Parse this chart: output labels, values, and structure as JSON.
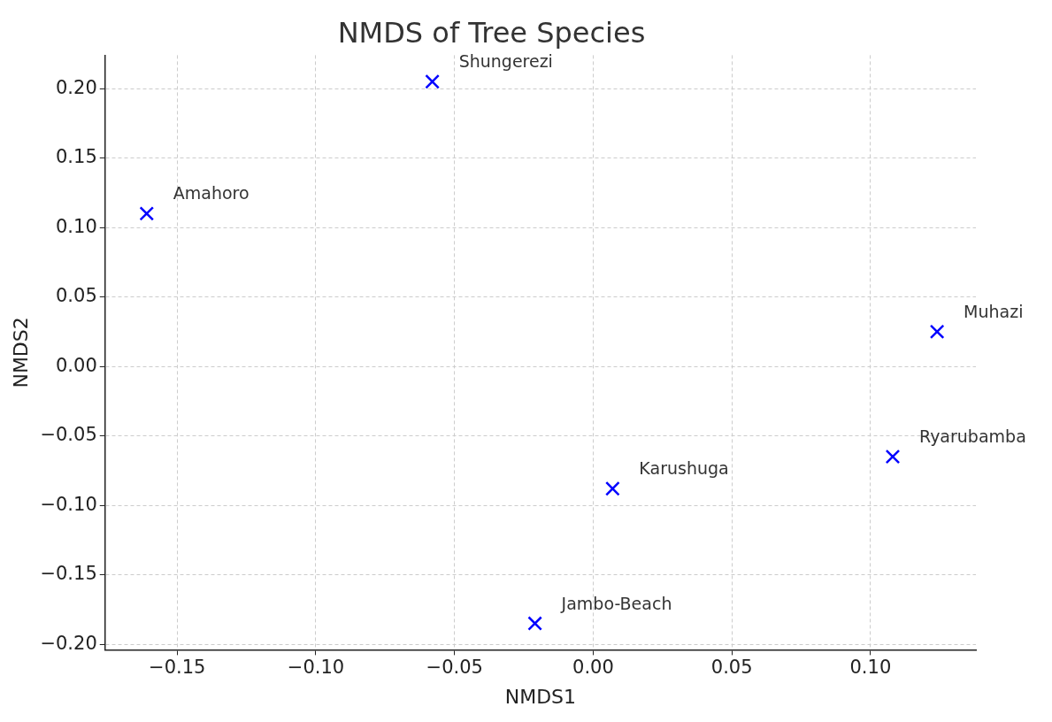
{
  "chart_data": {
    "type": "scatter",
    "title": "NMDS of Tree Species",
    "xlabel": "NMDS1",
    "ylabel": "NMDS2",
    "x": [
      -0.161,
      -0.058,
      0.124,
      0.108,
      0.007,
      -0.021
    ],
    "series": [
      {
        "color": "#0000ff",
        "values": [
          0.11,
          0.205,
          0.025,
          -0.065,
          -0.088,
          -0.185
        ]
      }
    ],
    "annotations": [
      {
        "text": "Amahoro",
        "x": -0.161,
        "y": 0.11
      },
      {
        "text": "Shungerezi",
        "x": -0.058,
        "y": 0.205
      },
      {
        "text": "Muhazi",
        "x": 0.124,
        "y": 0.025
      },
      {
        "text": "Ryarubamba",
        "x": 0.108,
        "y": -0.065
      },
      {
        "text": "Karushuga",
        "x": 0.007,
        "y": -0.088
      },
      {
        "text": "Jambo-Beach",
        "x": -0.021,
        "y": -0.185
      }
    ],
    "xlim": [
      -0.176,
      0.138
    ],
    "ylim": [
      -0.204,
      0.224
    ],
    "xticks": [
      {
        "value": -0.15,
        "label": "−0.15"
      },
      {
        "value": -0.1,
        "label": "−0.10"
      },
      {
        "value": -0.05,
        "label": "−0.05"
      },
      {
        "value": 0,
        "label": "0.00"
      },
      {
        "value": 0.05,
        "label": "0.05"
      },
      {
        "value": 0.1,
        "label": "0.10"
      }
    ],
    "yticks": [
      {
        "value": -0.2,
        "label": "−0.20"
      },
      {
        "value": -0.15,
        "label": "−0.15"
      },
      {
        "value": -0.1,
        "label": "−0.10"
      },
      {
        "value": -0.05,
        "label": "−0.05"
      },
      {
        "value": 0,
        "label": "0.00"
      },
      {
        "value": 0.05,
        "label": "0.05"
      },
      {
        "value": 0.1,
        "label": "0.10"
      },
      {
        "value": 0.15,
        "label": "0.15"
      },
      {
        "value": 0.2,
        "label": "0.20"
      }
    ],
    "grid": true,
    "marker": "cross",
    "legend": false
  }
}
